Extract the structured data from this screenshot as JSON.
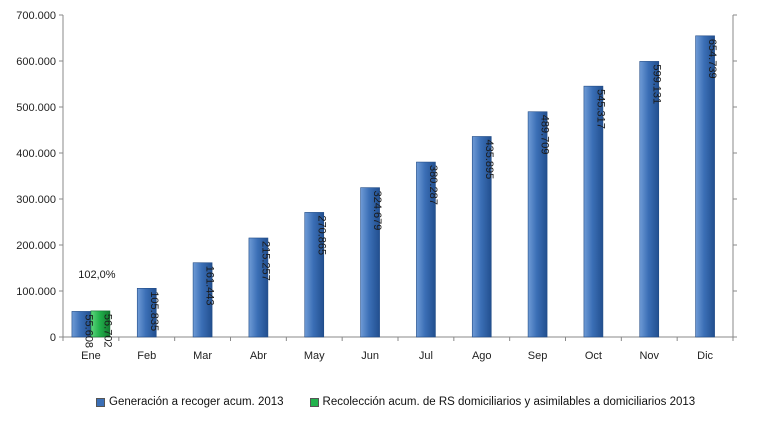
{
  "chart_data": {
    "type": "bar",
    "categories": [
      "Ene",
      "Feb",
      "Mar",
      "Abr",
      "May",
      "Jun",
      "Jul",
      "Ago",
      "Sep",
      "Oct",
      "Nov",
      "Dic"
    ],
    "series": [
      {
        "name": "Generación a recoger acum. 2013",
        "values": [
          55608,
          105835,
          161443,
          215257,
          270865,
          324679,
          380287,
          435895,
          489709,
          545317,
          599131,
          654739
        ],
        "labels": [
          "55.608",
          "105.835",
          "161.443",
          "215.257",
          "270.865",
          "324.679",
          "380.287",
          "435.895",
          "489.709",
          "545.317",
          "599.131",
          "654.739"
        ],
        "color": "#3b6fb6"
      },
      {
        "name": "Recolección acum. de RS domiciliarios y asimilables a domiciliarios 2013",
        "values": [
          56702,
          null,
          null,
          null,
          null,
          null,
          null,
          null,
          null,
          null,
          null,
          null
        ],
        "labels": [
          "56.702",
          null,
          null,
          null,
          null,
          null,
          null,
          null,
          null,
          null,
          null,
          null
        ],
        "color": "#22b24c"
      }
    ],
    "annotations": [
      {
        "text": "102,0%",
        "category": "Ene"
      }
    ],
    "ylim": [
      0,
      700000
    ],
    "yticks": [
      0,
      100000,
      200000,
      300000,
      400000,
      500000,
      600000,
      700000
    ],
    "ytick_labels": [
      "0",
      "100.000",
      "200.000",
      "300.000",
      "400.000",
      "500.000",
      "600.000",
      "700.000"
    ],
    "secondary_axis": true,
    "grid": false,
    "legend_position": "bottom",
    "title": "",
    "xlabel": "",
    "ylabel": ""
  }
}
